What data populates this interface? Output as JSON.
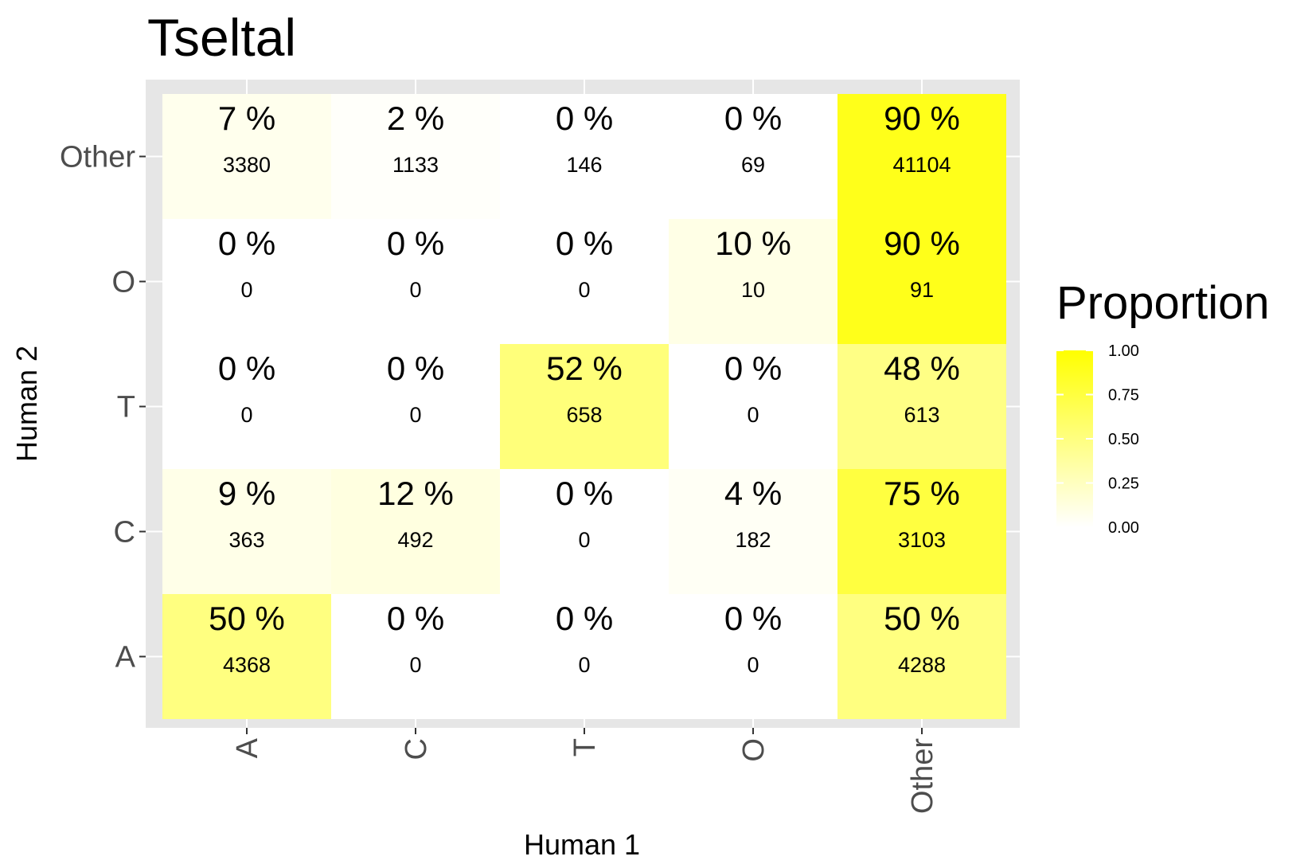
{
  "chart_data": {
    "type": "heatmap",
    "title": "Tseltal",
    "xlabel": "Human 1",
    "ylabel": "Human 2",
    "x_categories": [
      "A",
      "C",
      "T",
      "O",
      "Other"
    ],
    "y_categories": [
      "A",
      "C",
      "T",
      "O",
      "Other"
    ],
    "cells": [
      {
        "x": "A",
        "y": "Other",
        "proportion": 0.07,
        "percent_label": "7 %",
        "count": "3380"
      },
      {
        "x": "C",
        "y": "Other",
        "proportion": 0.02,
        "percent_label": "2 %",
        "count": "1133"
      },
      {
        "x": "T",
        "y": "Other",
        "proportion": 0.0,
        "percent_label": "0 %",
        "count": "146"
      },
      {
        "x": "O",
        "y": "Other",
        "proportion": 0.0,
        "percent_label": "0 %",
        "count": "69"
      },
      {
        "x": "Other",
        "y": "Other",
        "proportion": 0.9,
        "percent_label": "90 %",
        "count": "41104"
      },
      {
        "x": "A",
        "y": "O",
        "proportion": 0.0,
        "percent_label": "0 %",
        "count": "0"
      },
      {
        "x": "C",
        "y": "O",
        "proportion": 0.0,
        "percent_label": "0 %",
        "count": "0"
      },
      {
        "x": "T",
        "y": "O",
        "proportion": 0.0,
        "percent_label": "0 %",
        "count": "0"
      },
      {
        "x": "O",
        "y": "O",
        "proportion": 0.1,
        "percent_label": "10 %",
        "count": "10"
      },
      {
        "x": "Other",
        "y": "O",
        "proportion": 0.9,
        "percent_label": "90 %",
        "count": "91"
      },
      {
        "x": "A",
        "y": "T",
        "proportion": 0.0,
        "percent_label": "0 %",
        "count": "0"
      },
      {
        "x": "C",
        "y": "T",
        "proportion": 0.0,
        "percent_label": "0 %",
        "count": "0"
      },
      {
        "x": "T",
        "y": "T",
        "proportion": 0.52,
        "percent_label": "52 %",
        "count": "658"
      },
      {
        "x": "O",
        "y": "T",
        "proportion": 0.0,
        "percent_label": "0 %",
        "count": "0"
      },
      {
        "x": "Other",
        "y": "T",
        "proportion": 0.48,
        "percent_label": "48 %",
        "count": "613"
      },
      {
        "x": "A",
        "y": "C",
        "proportion": 0.09,
        "percent_label": "9 %",
        "count": "363"
      },
      {
        "x": "C",
        "y": "C",
        "proportion": 0.12,
        "percent_label": "12 %",
        "count": "492"
      },
      {
        "x": "T",
        "y": "C",
        "proportion": 0.0,
        "percent_label": "0 %",
        "count": "0"
      },
      {
        "x": "O",
        "y": "C",
        "proportion": 0.04,
        "percent_label": "4 %",
        "count": "182"
      },
      {
        "x": "Other",
        "y": "C",
        "proportion": 0.75,
        "percent_label": "75 %",
        "count": "3103"
      },
      {
        "x": "A",
        "y": "A",
        "proportion": 0.5,
        "percent_label": "50 %",
        "count": "4368"
      },
      {
        "x": "C",
        "y": "A",
        "proportion": 0.0,
        "percent_label": "0 %",
        "count": "0"
      },
      {
        "x": "T",
        "y": "A",
        "proportion": 0.0,
        "percent_label": "0 %",
        "count": "0"
      },
      {
        "x": "O",
        "y": "A",
        "proportion": 0.0,
        "percent_label": "0 %",
        "count": "0"
      },
      {
        "x": "Other",
        "y": "A",
        "proportion": 0.5,
        "percent_label": "50 %",
        "count": "4288"
      }
    ],
    "legend": {
      "title": "Proportion",
      "ticks": [
        "1.00",
        "0.75",
        "0.50",
        "0.25",
        "0.00"
      ],
      "tick_values": [
        1.0,
        0.75,
        0.5,
        0.25,
        0.0
      ],
      "range": [
        0,
        1
      ],
      "color_low": "#ffffff",
      "color_high": "#ffff00",
      "placement": "right"
    },
    "grid": true,
    "panel_background": "#e6e6e6"
  }
}
